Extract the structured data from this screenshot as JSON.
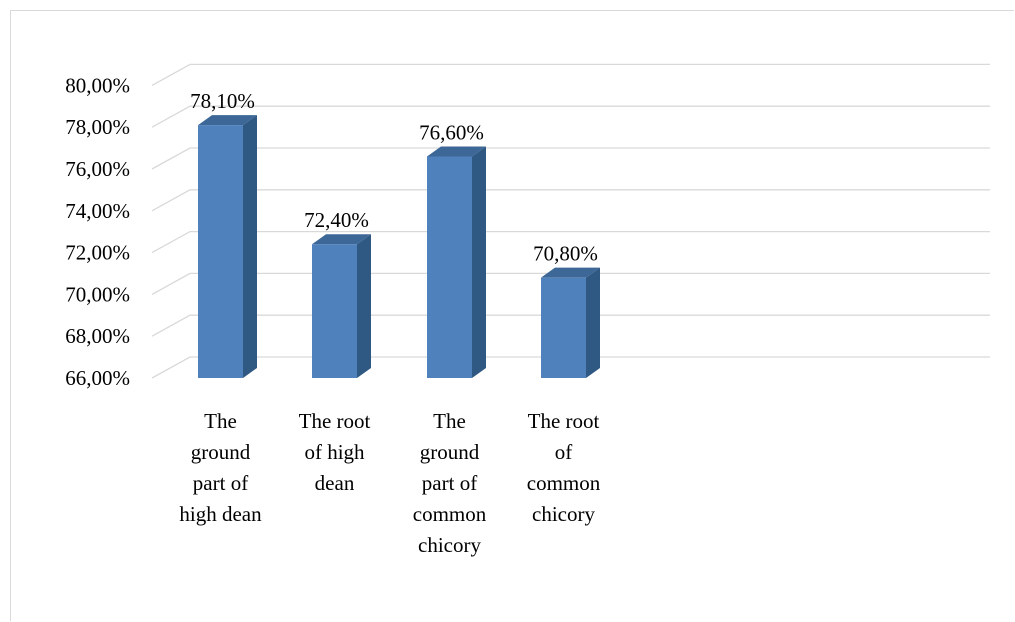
{
  "chart_data": {
    "type": "bar",
    "style": "3d-column",
    "title": "",
    "xlabel": "",
    "ylabel": "",
    "categories": [
      "The ground part of high dean",
      "The root of high dean",
      "The ground part of common chicory",
      "The root of common chicory"
    ],
    "category_lines": [
      [
        "The",
        "ground",
        "part of",
        "high dean"
      ],
      [
        "The root",
        "of high",
        "dean"
      ],
      [
        "The",
        "ground",
        "part of",
        "common",
        "chicory"
      ],
      [
        "The root",
        "of",
        "common",
        "chicory"
      ]
    ],
    "values": [
      78.1,
      72.4,
      76.6,
      70.8
    ],
    "data_labels": [
      "78,10%",
      "72,40%",
      "76,60%",
      "70,80%"
    ],
    "ylim": [
      66,
      80
    ],
    "yticks": [
      66,
      68,
      70,
      72,
      74,
      76,
      78,
      80
    ],
    "ytick_labels": [
      "66,00%",
      "68,00%",
      "70,00%",
      "72,00%",
      "74,00%",
      "76,00%",
      "78,00%",
      "80,00%"
    ],
    "grid": true,
    "legend": "none",
    "colors": {
      "bar_front": "#4f81bd",
      "bar_side": "#2f5882",
      "bar_top": "#3c6796",
      "gridline": "#d9d9d9",
      "text": "#000000"
    }
  }
}
